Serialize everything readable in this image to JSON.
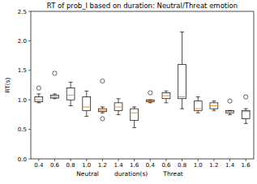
{
  "chart_data": {
    "type": "box",
    "title": "RT of prob_l based on duration: Neutral/Threat emotion",
    "x_label": "Neutral        duration(s)        Threat",
    "y_label": "RT(s)",
    "categories": [
      "0.4",
      "0.6",
      "0.8",
      "1.0",
      "1.2",
      "1.4",
      "1.6",
      "0.4",
      "0.6",
      "0.8",
      "1.0",
      "1.2",
      "1.4",
      "1.6"
    ],
    "boxes": [
      {
        "low": 0.95,
        "q1": 0.97,
        "median": 1.0,
        "q3": 1.05,
        "high": 1.1,
        "outliers": [
          1.2
        ]
      },
      {
        "low": 1.02,
        "q1": 1.03,
        "median": 1.05,
        "q3": 1.08,
        "high": 1.1,
        "outliers": [
          1.45
        ]
      },
      {
        "low": 0.9,
        "q1": 1.0,
        "median": 1.08,
        "q3": 1.2,
        "high": 1.3,
        "outliers": []
      },
      {
        "low": 0.72,
        "q1": 0.82,
        "median": 0.88,
        "q3": 1.05,
        "high": 1.15,
        "outliers": []
      },
      {
        "low": 0.78,
        "q1": 0.8,
        "median": 0.82,
        "q3": 0.85,
        "high": 0.88,
        "outliers": [
          1.32,
          0.68
        ]
      },
      {
        "low": 0.75,
        "q1": 0.82,
        "median": 0.88,
        "q3": 0.95,
        "high": 1.02,
        "outliers": []
      },
      {
        "low": 0.53,
        "q1": 0.65,
        "median": 0.78,
        "q3": 0.85,
        "high": 0.88,
        "outliers": []
      },
      {
        "low": 0.95,
        "q1": 0.97,
        "median": 0.98,
        "q3": 1.0,
        "high": 1.0,
        "outliers": [
          1.12
        ]
      },
      {
        "low": 0.95,
        "q1": 1.02,
        "median": 1.07,
        "q3": 1.12,
        "high": 1.15,
        "outliers": []
      },
      {
        "low": 0.85,
        "q1": 1.02,
        "median": 1.05,
        "q3": 1.6,
        "high": 2.15,
        "outliers": []
      },
      {
        "low": 0.78,
        "q1": 0.82,
        "median": 0.85,
        "q3": 0.98,
        "high": 1.05,
        "outliers": []
      },
      {
        "low": 0.82,
        "q1": 0.85,
        "median": 0.9,
        "q3": 0.95,
        "high": 0.98,
        "outliers": []
      },
      {
        "low": 0.75,
        "q1": 0.78,
        "median": 0.8,
        "q3": 0.82,
        "high": 0.82,
        "outliers": [
          0.98
        ]
      },
      {
        "low": 0.6,
        "q1": 0.68,
        "median": 0.8,
        "q3": 0.82,
        "high": 0.85,
        "outliers": [
          1.05
        ]
      }
    ],
    "ylim": [
      0,
      2.5
    ],
    "yticks": [
      {
        "value": 0,
        "label": "0.0"
      },
      {
        "value": 0.5,
        "label": "0.5"
      },
      {
        "value": 1,
        "label": "1.0"
      },
      {
        "value": 1.5,
        "label": "1.5"
      },
      {
        "value": 2,
        "label": "2.0"
      },
      {
        "value": 2.5,
        "label": "2.5"
      }
    ]
  }
}
